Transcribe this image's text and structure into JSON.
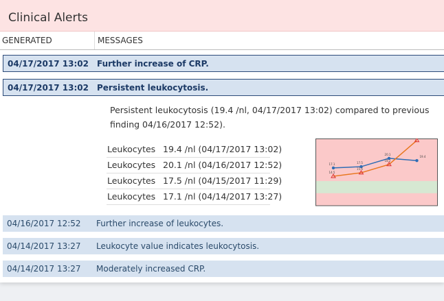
{
  "header": {
    "title": "Clinical Alerts"
  },
  "table": {
    "columns": [
      "GENERATED",
      "MESSAGES"
    ],
    "rows": [
      [
        "04/17/2017 13:02",
        "Further increase of CRP."
      ],
      [
        "04/17/2017 13:02",
        "Persistent leukocytosis."
      ],
      [
        "04/16/2017 12:52",
        "Further increase of leukocytes."
      ],
      [
        "04/14/2017 13:27",
        "Leukocyte value indicates leukocytosis."
      ],
      [
        "04/14/2017 13:27",
        "Moderately increased CRP."
      ]
    ]
  },
  "detail": {
    "text": "Persistent leukocytosis (19.4 /nl, 04/17/2017 13:02) compared to previous finding 04/16/2017 12:52).",
    "results": [
      [
        "Leukocytes",
        "19.4 /nl (04/17/2017 13:02)"
      ],
      [
        "Leukocytes",
        "20.1 /nl (04/16/2017 12:52)"
      ],
      [
        "Leukocytes",
        "17.5 /nl (04/15/2017 11:29)"
      ],
      [
        "Leukocytes",
        "17.1 /nl (04/14/2017 13:27)"
      ]
    ]
  },
  "chart_data": {
    "type": "line",
    "categories": [
      null,
      null,
      null,
      null
    ],
    "series": [
      {
        "color": "#2f6db5",
        "values": [
          17.1,
          17.5,
          20.1,
          19.4
        ]
      },
      {
        "color": "#e8771e",
        "values": [
          14.5,
          15.6,
          18.2,
          25.7
        ]
      }
    ],
    "ylim": [
      5.3,
      26.3
    ],
    "normal_range": [
      9.2,
      13.0
    ]
  }
}
